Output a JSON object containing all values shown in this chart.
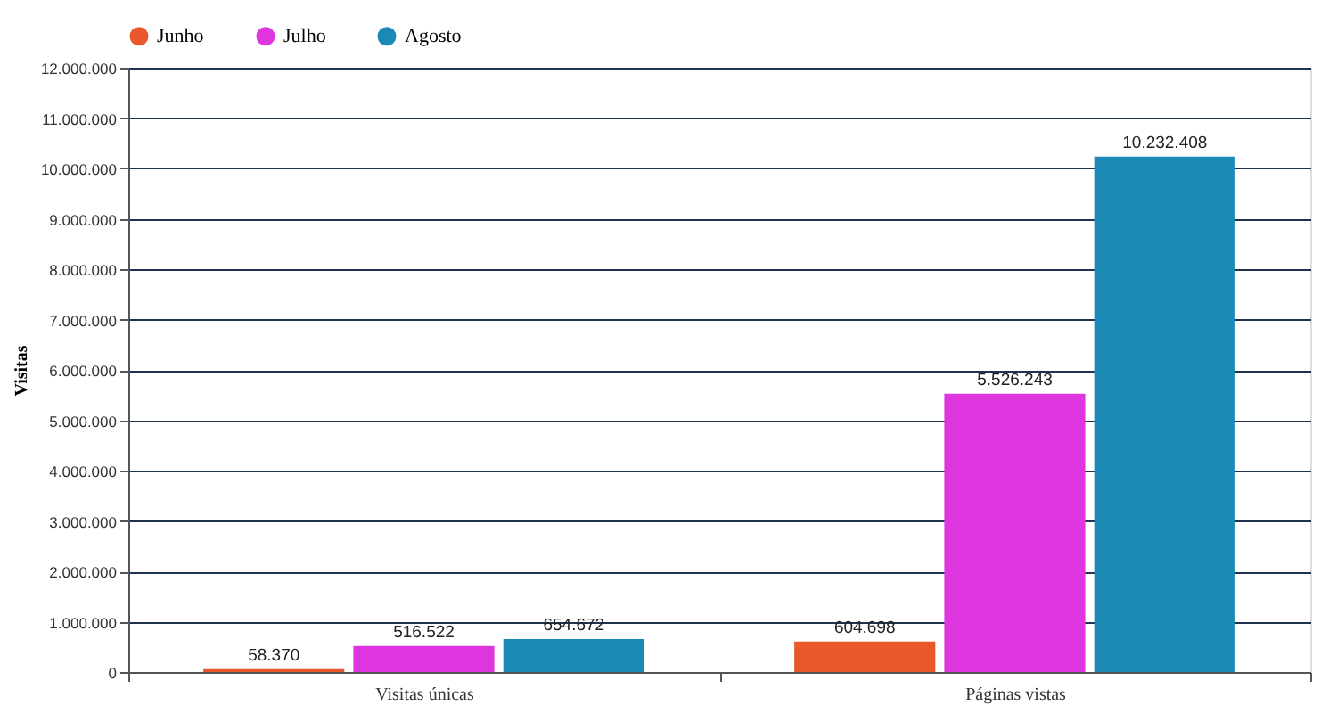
{
  "chart_data": {
    "type": "bar",
    "categories": [
      "Visitas únicas",
      "Páginas vistas"
    ],
    "series": [
      {
        "name": "Junho",
        "color": "#e8582a",
        "values": [
          58370,
          604698
        ],
        "value_labels": [
          "58.370",
          "604.698"
        ]
      },
      {
        "name": "Julho",
        "color": "#de35de",
        "values": [
          516522,
          5526243
        ],
        "value_labels": [
          "516.522",
          "5.526.243"
        ]
      },
      {
        "name": "Agosto",
        "color": "#1b89b6",
        "values": [
          654672,
          10232408
        ],
        "value_labels": [
          "654.672",
          "10.232.408"
        ]
      }
    ],
    "ylabel": "Visitas",
    "ylim": [
      0,
      12000000
    ],
    "yticks": [
      0,
      {
        "value": 1000000,
        "label": "1.000.000"
      },
      {
        "value": 2000000,
        "label": "2.000.000"
      },
      {
        "value": 3000000,
        "label": "3.000.000"
      },
      {
        "value": 4000000,
        "label": "4.000.000"
      },
      {
        "value": 5000000,
        "label": "5.000.000"
      },
      {
        "value": 6000000,
        "label": "6.000.000"
      },
      {
        "value": 7000000,
        "label": "7.000.000"
      },
      {
        "value": 8000000,
        "label": "8.000.000"
      },
      {
        "value": 9000000,
        "label": "9.000.000"
      },
      {
        "value": 10000000,
        "label": "10.000.000"
      },
      {
        "value": 11000000,
        "label": "11.000.000"
      },
      {
        "value": 12000000,
        "label": "12.000.000"
      }
    ],
    "grid": "y",
    "legend": "top left"
  }
}
